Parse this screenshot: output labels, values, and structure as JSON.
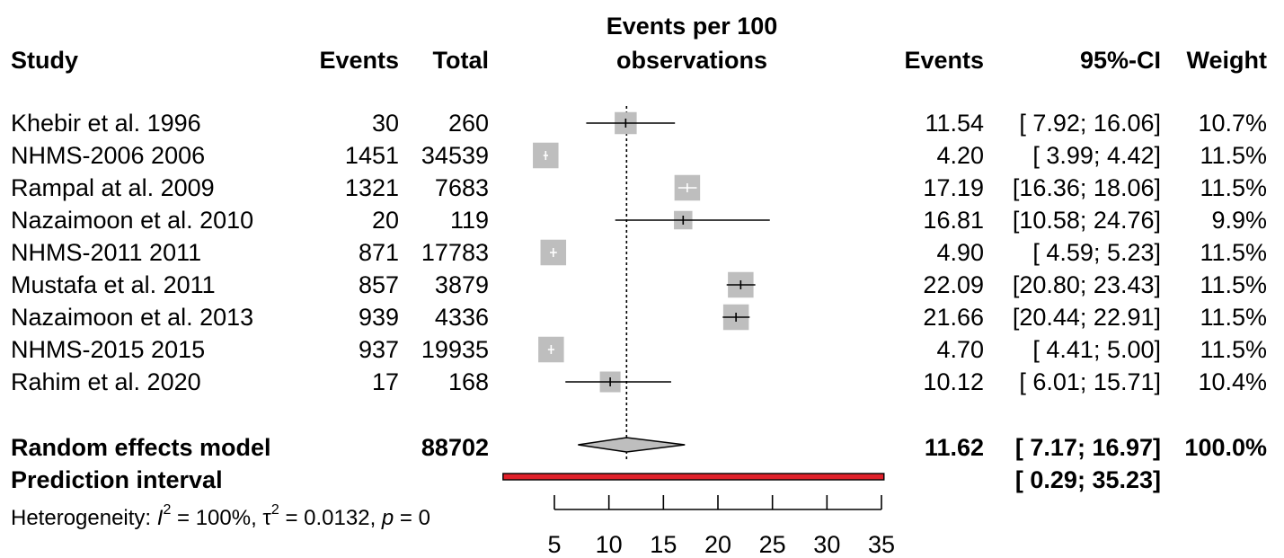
{
  "chart_data": {
    "type": "forest",
    "columns": {
      "study": "Study",
      "events": "Events",
      "total": "Total",
      "plot_title_line1": "Events per 100",
      "plot_title_line2": "observations",
      "events_rate": "Events",
      "ci": "95%-CI",
      "weight": "Weight"
    },
    "studies": [
      {
        "name": "Khebir et al. 1996",
        "events": "30",
        "total": "260",
        "rate": 11.54,
        "lower": 7.92,
        "upper": 16.06,
        "rate_text": "11.54",
        "ci_text": "[ 7.92; 16.06]",
        "weight_text": "10.7%",
        "weight": 10.7
      },
      {
        "name": "NHMS-2006 2006",
        "events": "1451",
        "total": "34539",
        "rate": 4.2,
        "lower": 3.99,
        "upper": 4.42,
        "rate_text": "4.20",
        "ci_text": "[ 3.99;  4.42]",
        "weight_text": "11.5%",
        "weight": 11.5
      },
      {
        "name": "Rampal at al. 2009",
        "events": "1321",
        "total": "7683",
        "rate": 17.19,
        "lower": 16.36,
        "upper": 18.06,
        "rate_text": "17.19",
        "ci_text": "[16.36; 18.06]",
        "weight_text": "11.5%",
        "weight": 11.5
      },
      {
        "name": "Nazaimoon et al. 2010",
        "events": "20",
        "total": "119",
        "rate": 16.81,
        "lower": 10.58,
        "upper": 24.76,
        "rate_text": "16.81",
        "ci_text": "[10.58; 24.76]",
        "weight_text": "9.9%",
        "weight": 9.9
      },
      {
        "name": "NHMS-2011 2011",
        "events": "871",
        "total": "17783",
        "rate": 4.9,
        "lower": 4.59,
        "upper": 5.23,
        "rate_text": "4.90",
        "ci_text": "[ 4.59;  5.23]",
        "weight_text": "11.5%",
        "weight": 11.5
      },
      {
        "name": "Mustafa et al. 2011",
        "events": "857",
        "total": "3879",
        "rate": 22.09,
        "lower": 20.8,
        "upper": 23.43,
        "rate_text": "22.09",
        "ci_text": "[20.80; 23.43]",
        "weight_text": "11.5%",
        "weight": 11.5
      },
      {
        "name": "Nazaimoon et al. 2013",
        "events": "939",
        "total": "4336",
        "rate": 21.66,
        "lower": 20.44,
        "upper": 22.91,
        "rate_text": "21.66",
        "ci_text": "[20.44; 22.91]",
        "weight_text": "11.5%",
        "weight": 11.5
      },
      {
        "name": "NHMS-2015 2015",
        "events": "937",
        "total": "19935",
        "rate": 4.7,
        "lower": 4.41,
        "upper": 5.0,
        "rate_text": "4.70",
        "ci_text": "[ 4.41;  5.00]",
        "weight_text": "11.5%",
        "weight": 11.5
      },
      {
        "name": "Rahim et al. 2020",
        "events": "17",
        "total": "168",
        "rate": 10.12,
        "lower": 6.01,
        "upper": 15.71,
        "rate_text": "10.12",
        "ci_text": "[ 6.01; 15.71]",
        "weight_text": "10.4%",
        "weight": 10.4
      }
    ],
    "random_effects": {
      "label": "Random effects model",
      "total": "88702",
      "rate": 11.62,
      "lower": 7.17,
      "upper": 16.97,
      "rate_text": "11.62",
      "ci_text": "[ 7.17; 16.97]",
      "weight_text": "100.0%"
    },
    "prediction_interval": {
      "label": "Prediction interval",
      "lower": 0.29,
      "upper": 35.23,
      "ci_text": "[ 0.29; 35.23]"
    },
    "heterogeneity": {
      "prefix": "Heterogeneity: ",
      "i2_symbol": "I",
      "i2_value": " = 100%, ",
      "tau_symbol": "τ",
      "tau_value": " = 0.0132, ",
      "p_symbol": "p",
      "p_value": " = 0",
      "superscript": "2"
    },
    "x_axis": {
      "range": [
        5,
        35
      ],
      "ticks": [
        5,
        10,
        15,
        20,
        25,
        30,
        35
      ],
      "tick_labels": [
        "5",
        "10",
        "15",
        "20",
        "25",
        "30",
        "35"
      ]
    },
    "reference_line": 11.62,
    "colors": {
      "square": "#bebebe",
      "diamond": "#bebebe",
      "prediction": "#e0202a",
      "ink": "#000000"
    }
  }
}
